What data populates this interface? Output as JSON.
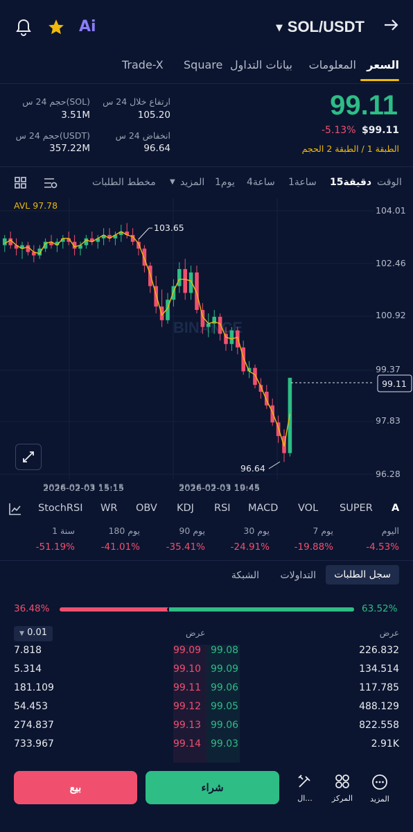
{
  "header": {
    "pair": "SOL/USDT",
    "icons": [
      "bell-icon",
      "star-icon",
      "ai-icon",
      "arrow-right-icon"
    ],
    "ai_label": "Ai"
  },
  "tabs": [
    {
      "label": "السعر",
      "active": true
    },
    {
      "label": "المعلومات",
      "active": false
    },
    {
      "label": "بيانات التداول",
      "active": false
    },
    {
      "label": "Square",
      "active": false
    },
    {
      "label": "Trade-X",
      "active": false
    }
  ],
  "price": {
    "last": "99.11",
    "change": "-5.13%",
    "usd": "$99.11",
    "tags": "الطبقة 1 / الطبقة 2 الحجم",
    "high_label": "ارتفاع خلال 24 س",
    "high_value": "105.20",
    "low_label": "انخفاض 24 س",
    "low_value": "96.64",
    "vol_sol_label": "حجم 24 س(SOL)",
    "vol_sol_value": "3.51M",
    "vol_usdt_label": "حجم 24 س(USDT)",
    "vol_usdt_value": "357.22M"
  },
  "timebar": {
    "items": [
      "الوقت",
      "15دقيقة",
      "1ساعة",
      "4ساعة",
      "1يوم",
      "المزيد",
      "مخطط الطلبات"
    ],
    "active": "15دقيقة"
  },
  "chart": {
    "avl": "AVL 97.78",
    "watermark": "BINANCE",
    "y_ticks": [
      "104.01",
      "102.46",
      "100.92",
      "99.37",
      "97.83",
      "96.28"
    ],
    "current": "99.11",
    "high_label": "103.65",
    "low_label": "96.64",
    "x_ticks": [
      "2026-02-03 15:15",
      "2026-02-03 19:45"
    ]
  },
  "indicators": [
    "SUPER",
    "VOL",
    "MACD",
    "RSI",
    "KDJ",
    "OBV",
    "WR",
    "StochRSI"
  ],
  "indicator_partial": "A",
  "performance": [
    {
      "label": "اليوم",
      "value": "-4.53%"
    },
    {
      "label": "7 يوم",
      "value": "-19.88%"
    },
    {
      "label": "30 يوم",
      "value": "-24.91%"
    },
    {
      "label": "90 يوم",
      "value": "-35.41%"
    },
    {
      "label": "180 يوم",
      "value": "-41.01%"
    },
    {
      "label": "1 سنة",
      "value": "-51.19%"
    }
  ],
  "book_tabs": [
    "سجل الطلبات",
    "التداولات",
    "الشبكة"
  ],
  "ratio": {
    "sell": "36.48%",
    "buy": "63.52%",
    "buy_fraction": 0.6352
  },
  "book": {
    "precision": "0.01",
    "left_header": "عرض",
    "right_header": "عرض",
    "rows": [
      {
        "left_qty": "7.818",
        "ask": "99.09",
        "bid": "99.08",
        "right_qty": "226.832"
      },
      {
        "left_qty": "5.314",
        "ask": "99.10",
        "bid": "99.09",
        "right_qty": "134.514"
      },
      {
        "left_qty": "181.109",
        "ask": "99.11",
        "bid": "99.06",
        "right_qty": "117.785"
      },
      {
        "left_qty": "54.453",
        "ask": "99.12",
        "bid": "99.05",
        "right_qty": "488.129"
      },
      {
        "left_qty": "274.837",
        "ask": "99.13",
        "bid": "99.06",
        "right_qty": "822.558"
      },
      {
        "left_qty": "733.967",
        "ask": "99.14",
        "bid": "99.03",
        "right_qty": "2.91K"
      }
    ]
  },
  "bottom": {
    "sell": "بيع",
    "buy": "شراء",
    "more": "المزيد",
    "center": "المركز",
    "tools": "ال..."
  }
}
